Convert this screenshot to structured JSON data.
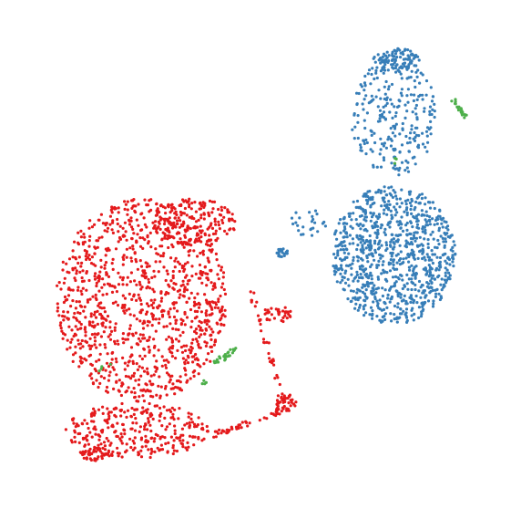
{
  "chart_data": {
    "type": "scatter",
    "title": "",
    "xlabel": "",
    "ylabel": "",
    "axes_visible": false,
    "grid": false,
    "legend": "none",
    "xlim": [
      0,
      100
    ],
    "ylim": [
      0,
      100
    ],
    "series": [
      {
        "color": "#377eb8",
        "clusters": [
          {
            "shape": "ellipse",
            "cx": 78,
            "cy": 50,
            "rx": 13,
            "ry": 15,
            "n": 900
          },
          {
            "shape": "ellipse",
            "cx": 78,
            "cy": 80,
            "rx": 9,
            "ry": 13,
            "n": 260
          },
          {
            "shape": "ellipse",
            "cx": 78.5,
            "cy": 92,
            "rx": 5,
            "ry": 2.5,
            "n": 90
          },
          {
            "shape": "ellipse",
            "cx": 54.5,
            "cy": 50.5,
            "rx": 1.2,
            "ry": 1,
            "n": 22
          },
          {
            "shape": "ellipse",
            "cx": 60,
            "cy": 57,
            "rx": 4,
            "ry": 3,
            "n": 25
          }
        ]
      },
      {
        "color": "#e41a1c",
        "clusters": [
          {
            "shape": "ellipse",
            "cx": 25,
            "cy": 40,
            "rx": 18,
            "ry": 22,
            "n": 1100
          },
          {
            "shape": "ellipse",
            "cx": 24,
            "cy": 12,
            "rx": 15,
            "ry": 6,
            "n": 300
          },
          {
            "shape": "ellipse",
            "cx": 36,
            "cy": 57,
            "rx": 9,
            "ry": 5,
            "n": 180
          },
          {
            "shape": "ellipse",
            "cx": 55,
            "cy": 18,
            "rx": 2.5,
            "ry": 2,
            "n": 45
          },
          {
            "shape": "ellipse",
            "cx": 53.5,
            "cy": 37,
            "rx": 3,
            "ry": 2,
            "n": 35
          },
          {
            "shape": "line",
            "x0": 40,
            "y0": 11,
            "x1": 54,
            "y1": 16,
            "n": 45
          },
          {
            "shape": "line",
            "x0": 48,
            "y0": 42,
            "x1": 54,
            "y1": 22,
            "n": 30
          },
          {
            "shape": "ellipse",
            "cx": 15,
            "cy": 7,
            "rx": 3,
            "ry": 1.5,
            "n": 40
          }
        ]
      },
      {
        "color": "#4daf4a",
        "clusters": [
          {
            "shape": "line",
            "x0": 90.5,
            "y0": 83,
            "x1": 93,
            "y1": 80,
            "n": 26
          },
          {
            "shape": "line",
            "x0": 40.5,
            "y0": 26.5,
            "x1": 44.5,
            "y1": 29.5,
            "n": 30
          },
          {
            "shape": "ellipse",
            "cx": 38,
            "cy": 22,
            "rx": 1,
            "ry": 1,
            "n": 4
          },
          {
            "shape": "ellipse",
            "cx": 17,
            "cy": 26,
            "rx": 1.5,
            "ry": 1.5,
            "n": 4
          },
          {
            "shape": "ellipse",
            "cx": 80,
            "cy": 70,
            "rx": 2,
            "ry": 2,
            "n": 3
          }
        ]
      }
    ]
  }
}
